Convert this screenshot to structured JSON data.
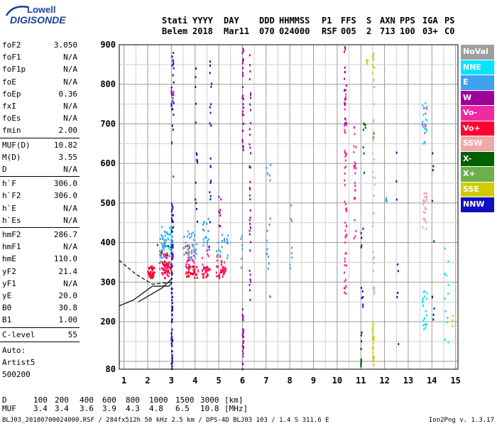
{
  "logo": {
    "line1": "Lowell",
    "line2": "DIGISONDE"
  },
  "header": {
    "row1": [
      "Stati",
      "YYYY",
      "DAY",
      "DDD",
      "HHMMSS",
      "P1",
      "FFS",
      "S",
      "AXN",
      "PPS",
      "IGA",
      "PS"
    ],
    "row2": [
      "Belem",
      "2018",
      "Mar11",
      "070",
      "024000",
      "RSF",
      "005",
      "2",
      "713",
      "100",
      "03+",
      "C0"
    ]
  },
  "params_group1": [
    {
      "name": "foF2",
      "value": "3.050"
    },
    {
      "name": "foF1",
      "value": "N/A"
    },
    {
      "name": "foF1p",
      "value": "N/A"
    },
    {
      "name": "foE",
      "value": "N/A"
    },
    {
      "name": "foEp",
      "value": "0.36"
    },
    {
      "name": "fxI",
      "value": "N/A"
    },
    {
      "name": "foEs",
      "value": "N/A"
    },
    {
      "name": "fmin",
      "value": "2.00"
    }
  ],
  "params_group2": [
    {
      "name": "MUF(D)",
      "value": "10.82"
    },
    {
      "name": "M(D)",
      "value": "3.55"
    },
    {
      "name": "D",
      "value": "N/A"
    }
  ],
  "params_group3": [
    {
      "name": "h`F",
      "value": "306.0"
    },
    {
      "name": "h`F2",
      "value": "306.0"
    },
    {
      "name": "h`E",
      "value": "N/A"
    },
    {
      "name": "h`Es",
      "value": "N/A"
    }
  ],
  "params_group4": [
    {
      "name": "hmF2",
      "value": "286.7"
    },
    {
      "name": "hmF1",
      "value": "N/A"
    },
    {
      "name": "hmE",
      "value": "110.0"
    },
    {
      "name": "yF2",
      "value": "21.4"
    },
    {
      "name": "yF1",
      "value": "N/A"
    },
    {
      "name": "yE",
      "value": "20.0"
    },
    {
      "name": "B0",
      "value": "30.8"
    },
    {
      "name": "B1",
      "value": "1.00"
    }
  ],
  "clevel": {
    "name": "C-level",
    "value": "55"
  },
  "auto": [
    "Auto:",
    "Artist5",
    "500200"
  ],
  "legend": [
    {
      "label": "NoVal",
      "color": "#9e9e9e"
    },
    {
      "label": "NNE",
      "color": "#00e5ff"
    },
    {
      "label": "E",
      "color": "#3fa0f0"
    },
    {
      "label": "W",
      "color": "#a0009a"
    },
    {
      "label": "Vo-",
      "color": "#ee2aa0"
    },
    {
      "label": "Vo+",
      "color": "#ff0030"
    },
    {
      "label": "SSW",
      "color": "#f0a8a8"
    },
    {
      "label": "X-",
      "color": "#006000"
    },
    {
      "label": "X+",
      "color": "#6cb04a"
    },
    {
      "label": "SSE",
      "color": "#d0cc00"
    },
    {
      "label": "NNW",
      "color": "#1010c0"
    }
  ],
  "bottom_table": {
    "d_label": "D",
    "d_values": [
      "100",
      "200",
      "400",
      "600",
      "800",
      "1000",
      "1500",
      "3000"
    ],
    "d_unit": "[km]",
    "muf_label": "MUF",
    "muf_values": [
      "3.4",
      "3.4",
      "3.6",
      "3.9",
      "4.3",
      "4.8",
      "6.5",
      "10.8"
    ],
    "muf_unit": "[MHz]"
  },
  "footer": {
    "left": "BLJ03_20180700024000.RSF / 284fx512h 50 kHz 2.5 km / DPS-4D BLJ03 103 / 1.4 S 311.6 E",
    "right": "Ion2Png v. 1.3.17"
  },
  "chart_data": {
    "type": "scatter",
    "title": "",
    "xlabel": "",
    "ylabel": "",
    "xlim": [
      0.8,
      15.1
    ],
    "ylim": [
      80,
      900
    ],
    "xticks": [
      1,
      2,
      3,
      4,
      5,
      6,
      7,
      8,
      9,
      10,
      11,
      12,
      13,
      14,
      15
    ],
    "yticks": [
      80,
      200,
      300,
      400,
      500,
      600,
      700,
      800,
      900
    ],
    "grid": true,
    "legend_position": "right",
    "series": [
      {
        "name": "Vo+",
        "color": "#ff0030",
        "clusters": [
          {
            "x": [
              2.0,
              2.3
            ],
            "y": [
              310,
              340
            ],
            "count": 40
          },
          {
            "x": [
              2.6,
              3.0
            ],
            "y": [
              310,
              350
            ],
            "count": 40
          },
          {
            "x": [
              3.6,
              4.1
            ],
            "y": [
              310,
              340
            ],
            "count": 35
          },
          {
            "x": [
              4.3,
              4.6
            ],
            "y": [
              310,
              340
            ],
            "count": 25
          },
          {
            "x": [
              4.9,
              5.3
            ],
            "y": [
              310,
              340
            ],
            "count": 25
          },
          {
            "x": [
              2.6,
              2.8
            ],
            "y": [
              340,
              400
            ],
            "count": 8
          },
          {
            "x": [
              3.6,
              3.8
            ],
            "y": [
              340,
              400
            ],
            "count": 8
          },
          {
            "x": [
              5.1,
              5.2
            ],
            "y": [
              330,
              410
            ],
            "count": 6
          }
        ]
      },
      {
        "name": "E",
        "color": "#3fa0f0",
        "clusters": [
          {
            "x": [
              2.5,
              3.1
            ],
            "y": [
              360,
              430
            ],
            "count": 45
          },
          {
            "x": [
              3.5,
              4.1
            ],
            "y": [
              360,
              430
            ],
            "count": 35
          },
          {
            "x": [
              4.3,
              4.6
            ],
            "y": [
              380,
              460
            ],
            "count": 20
          },
          {
            "x": [
              4.9,
              5.4
            ],
            "y": [
              360,
              420
            ],
            "count": 18
          },
          {
            "x": [
              5.9,
              6.0
            ],
            "y": [
              320,
              420
            ],
            "count": 6
          },
          {
            "x": [
              7.0,
              7.2
            ],
            "y": [
              250,
              480
            ],
            "count": 12
          },
          {
            "x": [
              7.0,
              7.2
            ],
            "y": [
              550,
              610
            ],
            "count": 6
          },
          {
            "x": [
              8.0,
              8.1
            ],
            "y": [
              320,
              500
            ],
            "count": 8
          },
          {
            "x": [
              12.0,
              12.1
            ],
            "y": [
              500,
              520
            ],
            "count": 4
          }
        ]
      },
      {
        "name": "Vo-",
        "color": "#ee2aa0",
        "clusters": [
          {
            "x": [
              2.5,
              3.1
            ],
            "y": [
              320,
              380
            ],
            "count": 20
          },
          {
            "x": [
              3.6,
              4.2
            ],
            "y": [
              320,
              380
            ],
            "count": 18
          },
          {
            "x": [
              4.3,
              4.7
            ],
            "y": [
              320,
              390
            ],
            "count": 12
          },
          {
            "x": [
              4.9,
              5.3
            ],
            "y": [
              320,
              380
            ],
            "count": 10
          },
          {
            "x": [
              10.3,
              10.4
            ],
            "y": [
              260,
              820
            ],
            "count": 60
          },
          {
            "x": [
              10.7,
              10.8
            ],
            "y": [
              400,
              700
            ],
            "count": 25
          },
          {
            "x": [
              13.6,
              13.8
            ],
            "y": [
              620,
              760
            ],
            "count": 10
          }
        ]
      },
      {
        "name": "W",
        "color": "#a0009a",
        "clusters": [
          {
            "x": [
              6.0,
              6.05
            ],
            "y": [
              80,
              240
            ],
            "count": 25
          },
          {
            "x": [
              6.0,
              6.05
            ],
            "y": [
              620,
              900
            ],
            "count": 30
          },
          {
            "x": [
              6.3,
              6.35
            ],
            "y": [
              250,
              900
            ],
            "count": 40
          },
          {
            "x": [
              10.3,
              10.35
            ],
            "y": [
              700,
              900
            ],
            "count": 15
          },
          {
            "x": [
              3.0,
              3.1
            ],
            "y": [
              350,
              900
            ],
            "count": 20
          },
          {
            "x": [
              5.0,
              5.1
            ],
            "y": [
              440,
              520
            ],
            "count": 8
          }
        ]
      },
      {
        "name": "NNW",
        "color": "#1010c0",
        "clusters": [
          {
            "x": [
              3.0,
              3.05
            ],
            "y": [
              80,
              500
            ],
            "count": 70
          },
          {
            "x": [
              3.0,
              3.1
            ],
            "y": [
              680,
              900
            ],
            "count": 20
          },
          {
            "x": [
              4.6,
              4.7
            ],
            "y": [
              380,
              900
            ],
            "count": 20
          },
          {
            "x": [
              4.0,
              4.1
            ],
            "y": [
              450,
              900
            ],
            "count": 15
          },
          {
            "x": [
              11.0,
              11.1
            ],
            "y": [
              130,
              480
            ],
            "count": 15
          },
          {
            "x": [
              12.5,
              12.6
            ],
            "y": [
              120,
              700
            ],
            "count": 8
          },
          {
            "x": [
              14.0,
              14.1
            ],
            "y": [
              200,
              640
            ],
            "count": 10
          }
        ]
      },
      {
        "name": "NNE",
        "color": "#00e5ff",
        "clusters": [
          {
            "x": [
              2.5,
              3.1
            ],
            "y": [
              380,
              440
            ],
            "count": 18
          },
          {
            "x": [
              13.6,
              13.8
            ],
            "y": [
              180,
              280
            ],
            "count": 20
          },
          {
            "x": [
              13.6,
              13.8
            ],
            "y": [
              650,
              760
            ],
            "count": 15
          },
          {
            "x": [
              14.5,
              14.7
            ],
            "y": [
              120,
              400
            ],
            "count": 12
          }
        ]
      },
      {
        "name": "SSW",
        "color": "#f0a8a8",
        "clusters": [
          {
            "x": [
              11.5,
              11.6
            ],
            "y": [
              260,
              880
            ],
            "count": 35
          },
          {
            "x": [
              13.6,
              13.8
            ],
            "y": [
              430,
              530
            ],
            "count": 25
          }
        ]
      },
      {
        "name": "X-",
        "color": "#006000",
        "clusters": [
          {
            "x": [
              11.0,
              11.02
            ],
            "y": [
              80,
              110
            ],
            "count": 8
          },
          {
            "x": [
              11.1,
              11.2
            ],
            "y": [
              560,
              720
            ],
            "count": 8
          },
          {
            "x": [
              2.4,
              3.0
            ],
            "y": [
              350,
              400
            ],
            "count": 8
          }
        ]
      },
      {
        "name": "X+",
        "color": "#6cb04a",
        "clusters": [
          {
            "x": [
              11.5,
              11.6
            ],
            "y": [
              660,
              690
            ],
            "count": 4
          },
          {
            "x": [
              3.5,
              4.0
            ],
            "y": [
              360,
              400
            ],
            "count": 6
          }
        ]
      },
      {
        "name": "SSE",
        "color": "#d0cc00",
        "clusters": [
          {
            "x": [
              11.5,
              11.55
            ],
            "y": [
              80,
              200
            ],
            "count": 25
          },
          {
            "x": [
              11.5,
              11.55
            ],
            "y": [
              820,
              880
            ],
            "count": 8
          },
          {
            "x": [
              11.2,
              11.3
            ],
            "y": [
              840,
              870
            ],
            "count": 4
          },
          {
            "x": [
              14.8,
              14.9
            ],
            "y": [
              180,
              220
            ],
            "count": 3
          }
        ]
      }
    ],
    "profile_solid": {
      "x": [
        0.8,
        1.4,
        2.2,
        2.9,
        3.05
      ],
      "y": [
        240,
        255,
        290,
        290,
        300
      ]
    },
    "profile_dashed": {
      "x": [
        0.8,
        1.5,
        2.2,
        3.05
      ],
      "y": [
        355,
        320,
        295,
        300
      ]
    },
    "profile_solid_upper": {
      "x": [
        1.6,
        2.6,
        3.05
      ],
      "y": [
        250,
        285,
        310
      ]
    }
  }
}
